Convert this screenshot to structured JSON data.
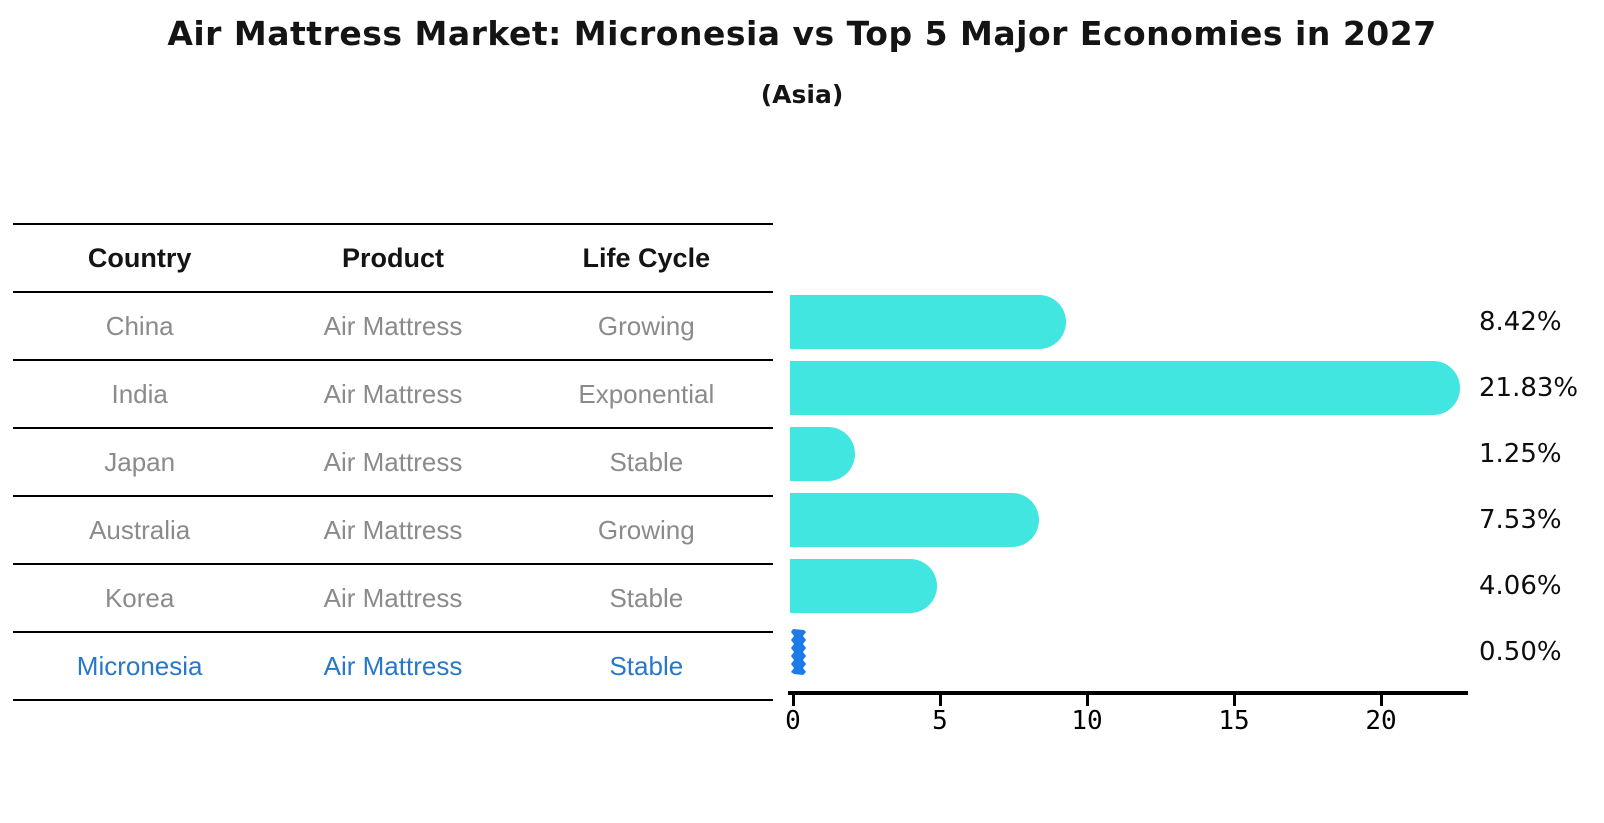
{
  "title": "Air Mattress Market: Micronesia vs Top 5 Major Economies in 2027",
  "subtitle": "(Asia)",
  "table": {
    "headers": [
      "Country",
      "Product",
      "Life Cycle"
    ],
    "rows": [
      {
        "country": "China",
        "product": "Air Mattress",
        "life_cycle": "Growing",
        "highlight": false
      },
      {
        "country": "India",
        "product": "Air Mattress",
        "life_cycle": "Exponential",
        "highlight": false
      },
      {
        "country": "Japan",
        "product": "Air Mattress",
        "life_cycle": "Stable",
        "highlight": false
      },
      {
        "country": "Australia",
        "product": "Air Mattress",
        "life_cycle": "Growing",
        "highlight": false
      },
      {
        "country": "Korea",
        "product": "Air Mattress",
        "life_cycle": "Stable",
        "highlight": false
      },
      {
        "country": "Micronesia",
        "product": "Air Mattress",
        "life_cycle": "Stable",
        "highlight": true
      }
    ]
  },
  "chart_data": {
    "type": "bar",
    "orientation": "horizontal",
    "title": "Air Mattress Market: Micronesia vs Top 5 Major Economies in 2027",
    "subtitle": "(Asia)",
    "categories": [
      "China",
      "India",
      "Japan",
      "Australia",
      "Korea",
      "Micronesia"
    ],
    "values": [
      8.42,
      21.83,
      1.25,
      7.53,
      4.06,
      0.5
    ],
    "value_labels": [
      "8.42%",
      "21.83%",
      "1.25%",
      "7.53%",
      "4.06%",
      "0.50%"
    ],
    "xticks": [
      0,
      5,
      10,
      15,
      20
    ],
    "xlim": [
      0,
      23
    ],
    "grid": false,
    "legend": "none",
    "bar_color": "#40e6df",
    "highlight_color": "#1b7ce8",
    "highlight_index": 5
  },
  "colors": {
    "row_text": "#8b8b8b",
    "highlight_text": "#2878c8",
    "header_text": "#141414",
    "value_label_text": "#0d0d0d",
    "axis": "#000000",
    "background": "#ffffff"
  }
}
